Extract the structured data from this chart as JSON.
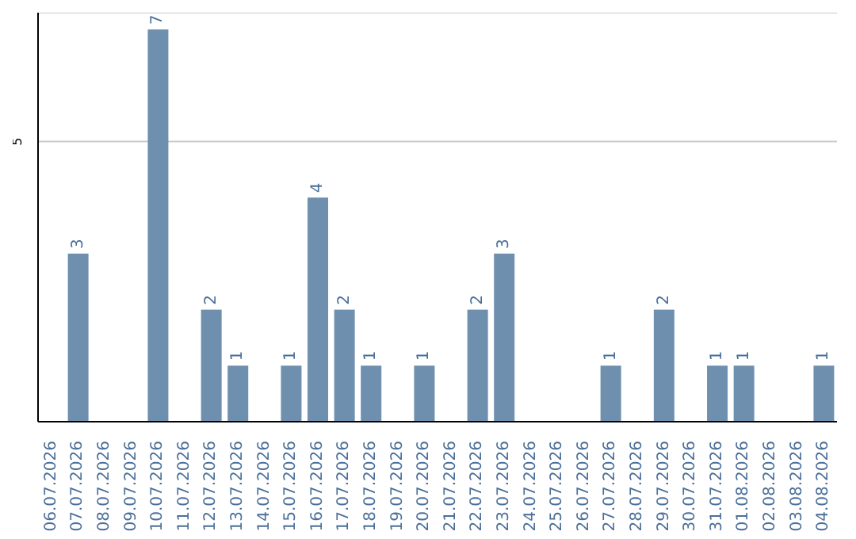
{
  "chart_data": {
    "type": "bar",
    "categories": [
      "06.07.2026",
      "07.07.2026",
      "08.07.2026",
      "09.07.2026",
      "10.07.2026",
      "11.07.2026",
      "12.07.2026",
      "13.07.2026",
      "14.07.2026",
      "15.07.2026",
      "16.07.2026",
      "17.07.2026",
      "18.07.2026",
      "19.07.2026",
      "20.07.2026",
      "21.07.2026",
      "22.07.2026",
      "23.07.2026",
      "24.07.2026",
      "25.07.2026",
      "26.07.2026",
      "27.07.2026",
      "28.07.2026",
      "29.07.2026",
      "30.07.2026",
      "31.07.2026",
      "01.08.2026",
      "02.08.2026",
      "03.08.2026",
      "04.08.2026"
    ],
    "values": [
      0,
      3,
      0,
      0,
      7,
      0,
      2,
      1,
      0,
      1,
      4,
      2,
      1,
      0,
      1,
      0,
      2,
      3,
      0,
      0,
      0,
      1,
      0,
      2,
      0,
      1,
      1,
      0,
      0,
      1
    ],
    "value_labels": [
      null,
      "3",
      null,
      null,
      "7",
      null,
      "2",
      "1",
      null,
      "1",
      "4",
      "2",
      "1",
      null,
      "1",
      null,
      "2",
      "3",
      null,
      null,
      null,
      "1",
      null,
      "2",
      null,
      "1",
      "1",
      null,
      null,
      "1"
    ],
    "color": "#6e8fae",
    "ylim": [
      0,
      7.3
    ],
    "yticks": [
      5
    ],
    "grid": "y"
  }
}
